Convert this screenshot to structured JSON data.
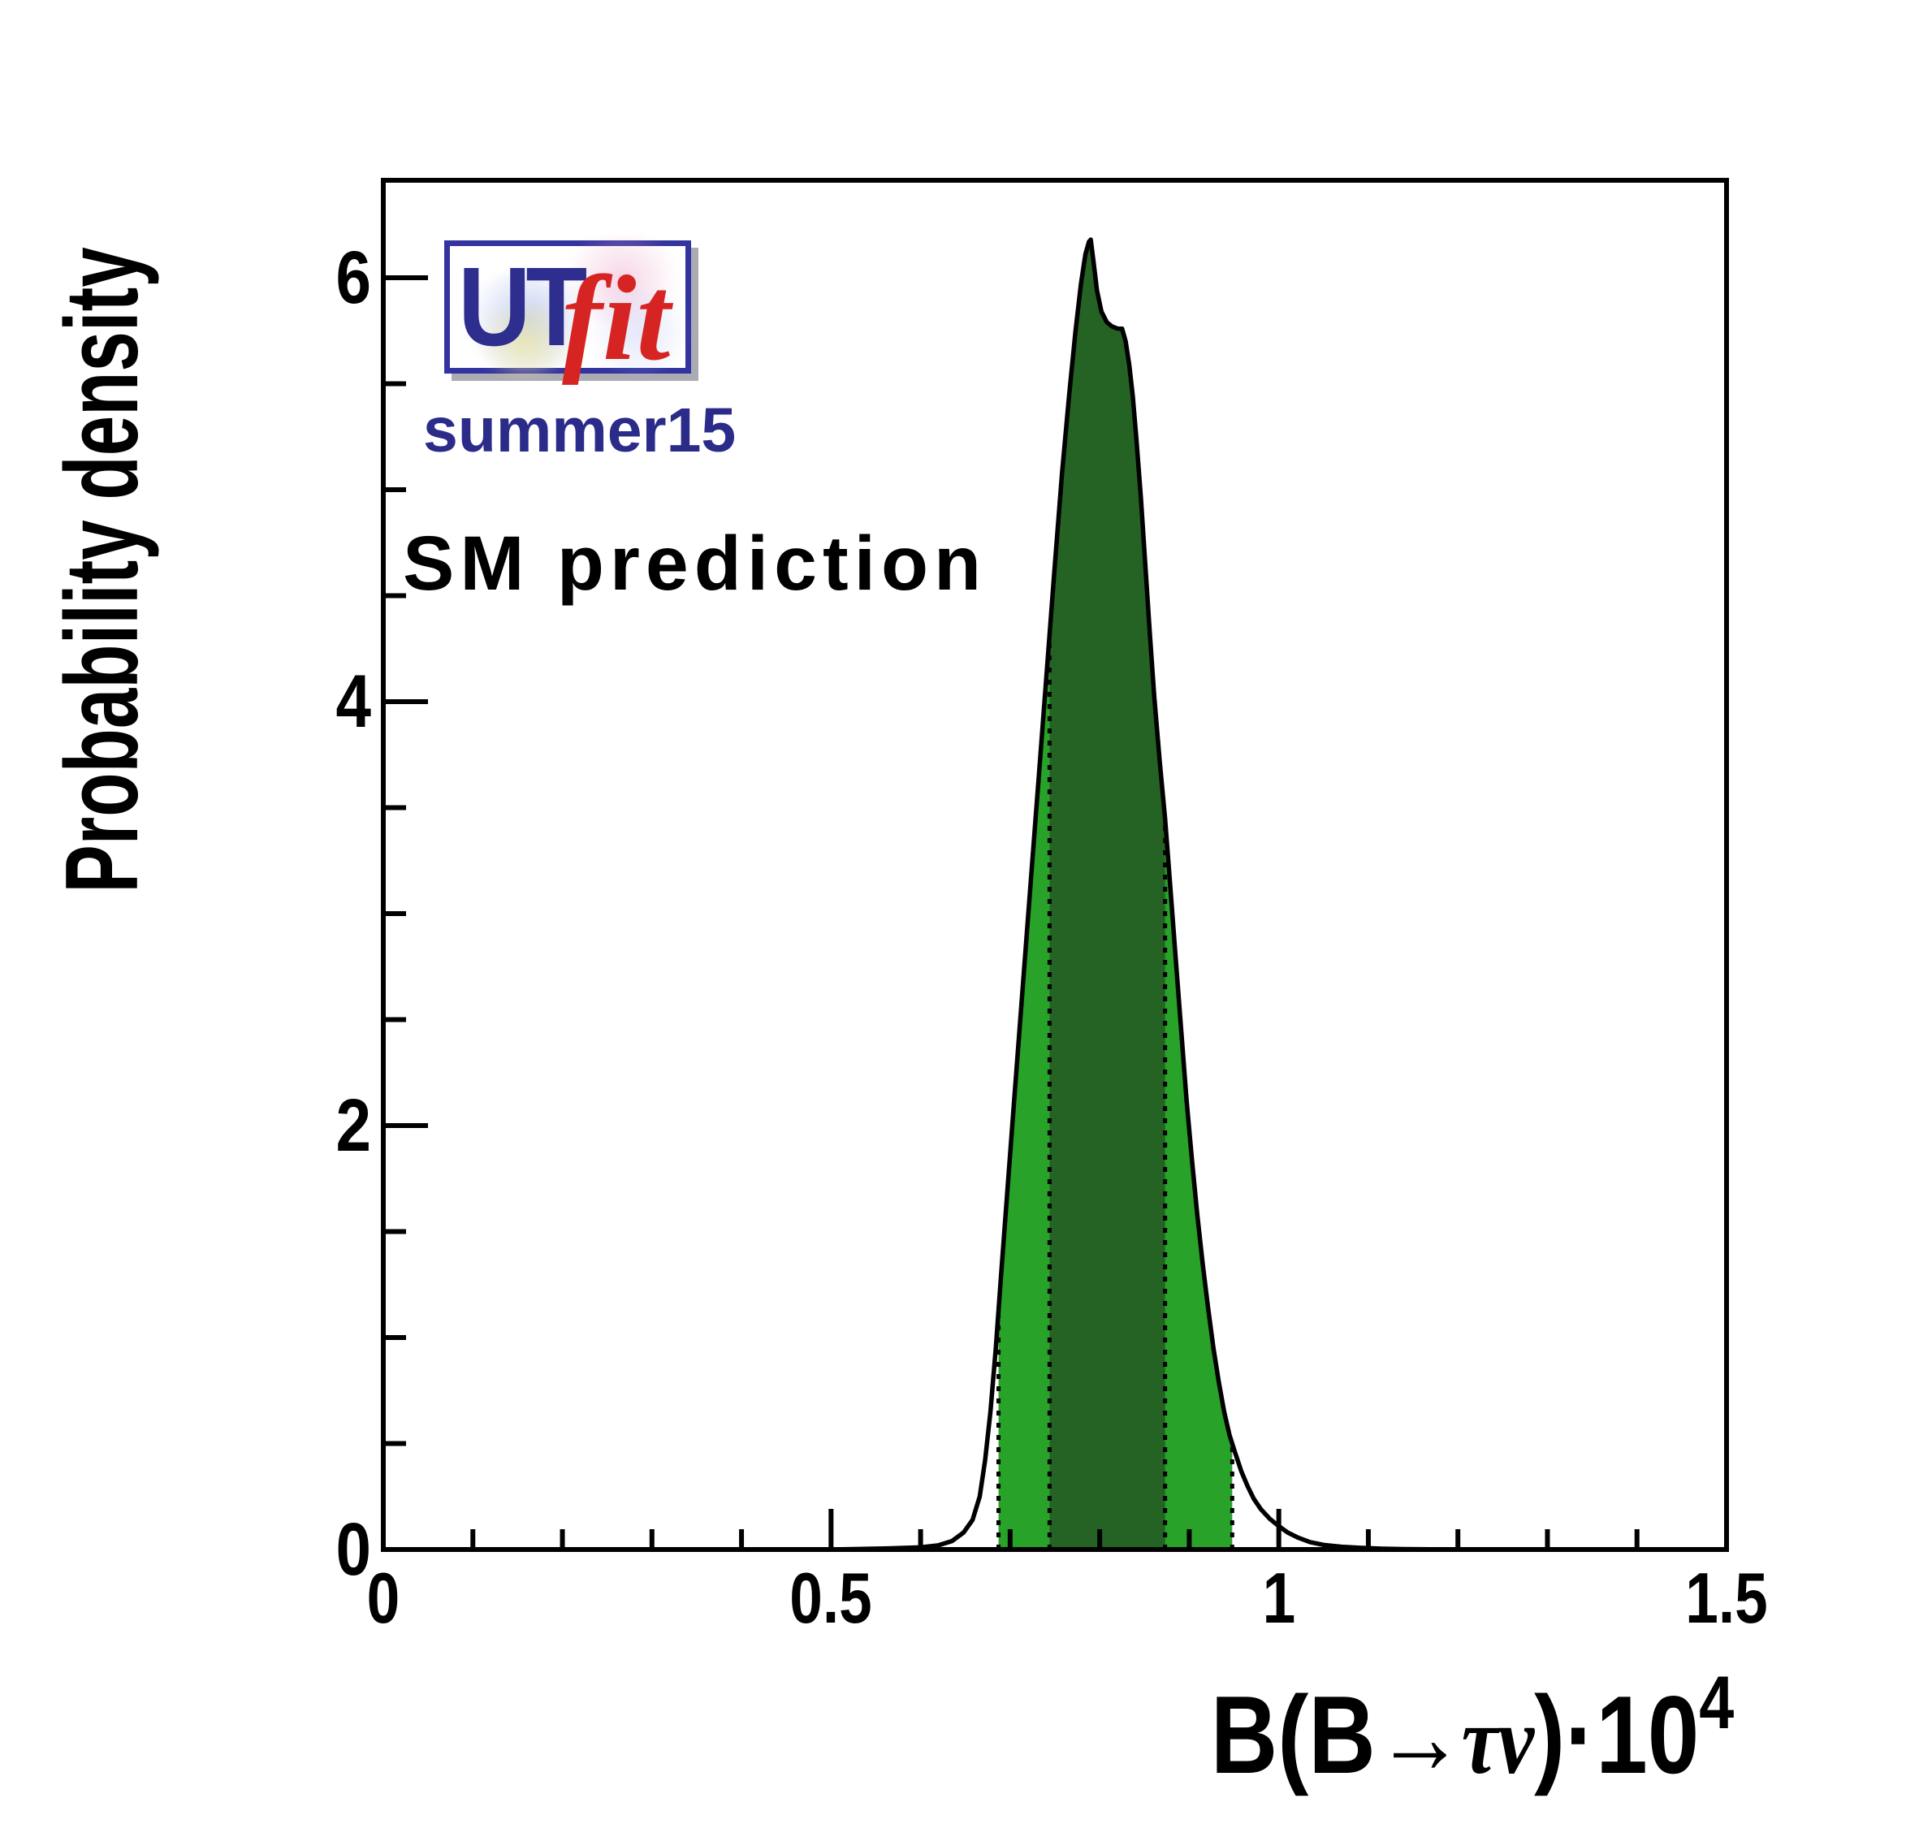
{
  "page": {
    "background": "#ffffff"
  },
  "watermark": {
    "logo_ut": "UT",
    "logo_fit": "fit",
    "edition": "summer15"
  },
  "annotation": {
    "text": "SM prediction"
  },
  "y_axis": {
    "title": "Probability density"
  },
  "x_axis": {
    "title_prefix": "B(B",
    "title_arrow": "→",
    "title_taunu": "τν",
    "title_suffix": ")·10",
    "title_exponent": "4"
  },
  "chart_data": {
    "type": "area",
    "title": "SM prediction",
    "watermark": "UTfit summer15",
    "xlabel": "B(B→τν)·10^4",
    "ylabel": "Probability density",
    "xlim": [
      0,
      1.5
    ],
    "ylim": [
      0,
      6.46
    ],
    "grid": false,
    "x_major_ticks": [
      0,
      0.5,
      1,
      1.5
    ],
    "x_tick_labels": [
      "0",
      "0.5",
      "1",
      "1.5"
    ],
    "x_minor_step": 0.1,
    "y_major_ticks": [
      0,
      2,
      4,
      6
    ],
    "y_tick_labels": [
      "0",
      "2",
      "4",
      "6"
    ],
    "y_minor_step": 0.5,
    "curve_color": "#000000",
    "frame_color": "#000000",
    "peak": {
      "x": 0.79,
      "y": 6.18
    },
    "bands": {
      "inner": {
        "range": [
          0.744,
          0.873
        ],
        "color": "#256325"
      },
      "outer": {
        "range": [
          0.687,
          0.948
        ],
        "color": "#28a228"
      }
    },
    "boundary_line_style": "dotted",
    "curve": [
      [
        0.5,
        0
      ],
      [
        0.56,
        0.005
      ],
      [
        0.6,
        0.01
      ],
      [
        0.62,
        0.02
      ],
      [
        0.635,
        0.04
      ],
      [
        0.648,
        0.08
      ],
      [
        0.658,
        0.14
      ],
      [
        0.666,
        0.25
      ],
      [
        0.672,
        0.42
      ],
      [
        0.678,
        0.65
      ],
      [
        0.684,
        0.95
      ],
      [
        0.69,
        1.3
      ],
      [
        0.697,
        1.7
      ],
      [
        0.705,
        2.15
      ],
      [
        0.714,
        2.65
      ],
      [
        0.723,
        3.15
      ],
      [
        0.732,
        3.65
      ],
      [
        0.741,
        4.15
      ],
      [
        0.75,
        4.65
      ],
      [
        0.758,
        5.08
      ],
      [
        0.766,
        5.45
      ],
      [
        0.773,
        5.75
      ],
      [
        0.779,
        5.97
      ],
      [
        0.784,
        6.11
      ],
      [
        0.788,
        6.17
      ],
      [
        0.79,
        6.18
      ],
      [
        0.793,
        6.08
      ],
      [
        0.797,
        5.94
      ],
      [
        0.802,
        5.84
      ],
      [
        0.808,
        5.79
      ],
      [
        0.814,
        5.77
      ],
      [
        0.82,
        5.76
      ],
      [
        0.825,
        5.76
      ],
      [
        0.829,
        5.7
      ],
      [
        0.833,
        5.59
      ],
      [
        0.837,
        5.44
      ],
      [
        0.841,
        5.24
      ],
      [
        0.846,
        4.96
      ],
      [
        0.851,
        4.64
      ],
      [
        0.856,
        4.32
      ],
      [
        0.861,
        4.02
      ],
      [
        0.867,
        3.72
      ],
      [
        0.873,
        3.45
      ],
      [
        0.879,
        3.12
      ],
      [
        0.885,
        2.78
      ],
      [
        0.891,
        2.45
      ],
      [
        0.897,
        2.12
      ],
      [
        0.903,
        1.84
      ],
      [
        0.909,
        1.58
      ],
      [
        0.915,
        1.35
      ],
      [
        0.921,
        1.14
      ],
      [
        0.927,
        0.95
      ],
      [
        0.933,
        0.79
      ],
      [
        0.939,
        0.65
      ],
      [
        0.945,
        0.54
      ],
      [
        0.951,
        0.46
      ],
      [
        0.958,
        0.37
      ],
      [
        0.965,
        0.3
      ],
      [
        0.972,
        0.24
      ],
      [
        0.98,
        0.19
      ],
      [
        0.99,
        0.145
      ],
      [
        1.0,
        0.11
      ],
      [
        1.01,
        0.08
      ],
      [
        1.022,
        0.055
      ],
      [
        1.035,
        0.035
      ],
      [
        1.05,
        0.022
      ],
      [
        1.07,
        0.013
      ],
      [
        1.09,
        0.008
      ],
      [
        1.115,
        0.004
      ],
      [
        1.14,
        0.002
      ],
      [
        1.17,
        0.001
      ],
      [
        1.21,
        0
      ]
    ]
  }
}
